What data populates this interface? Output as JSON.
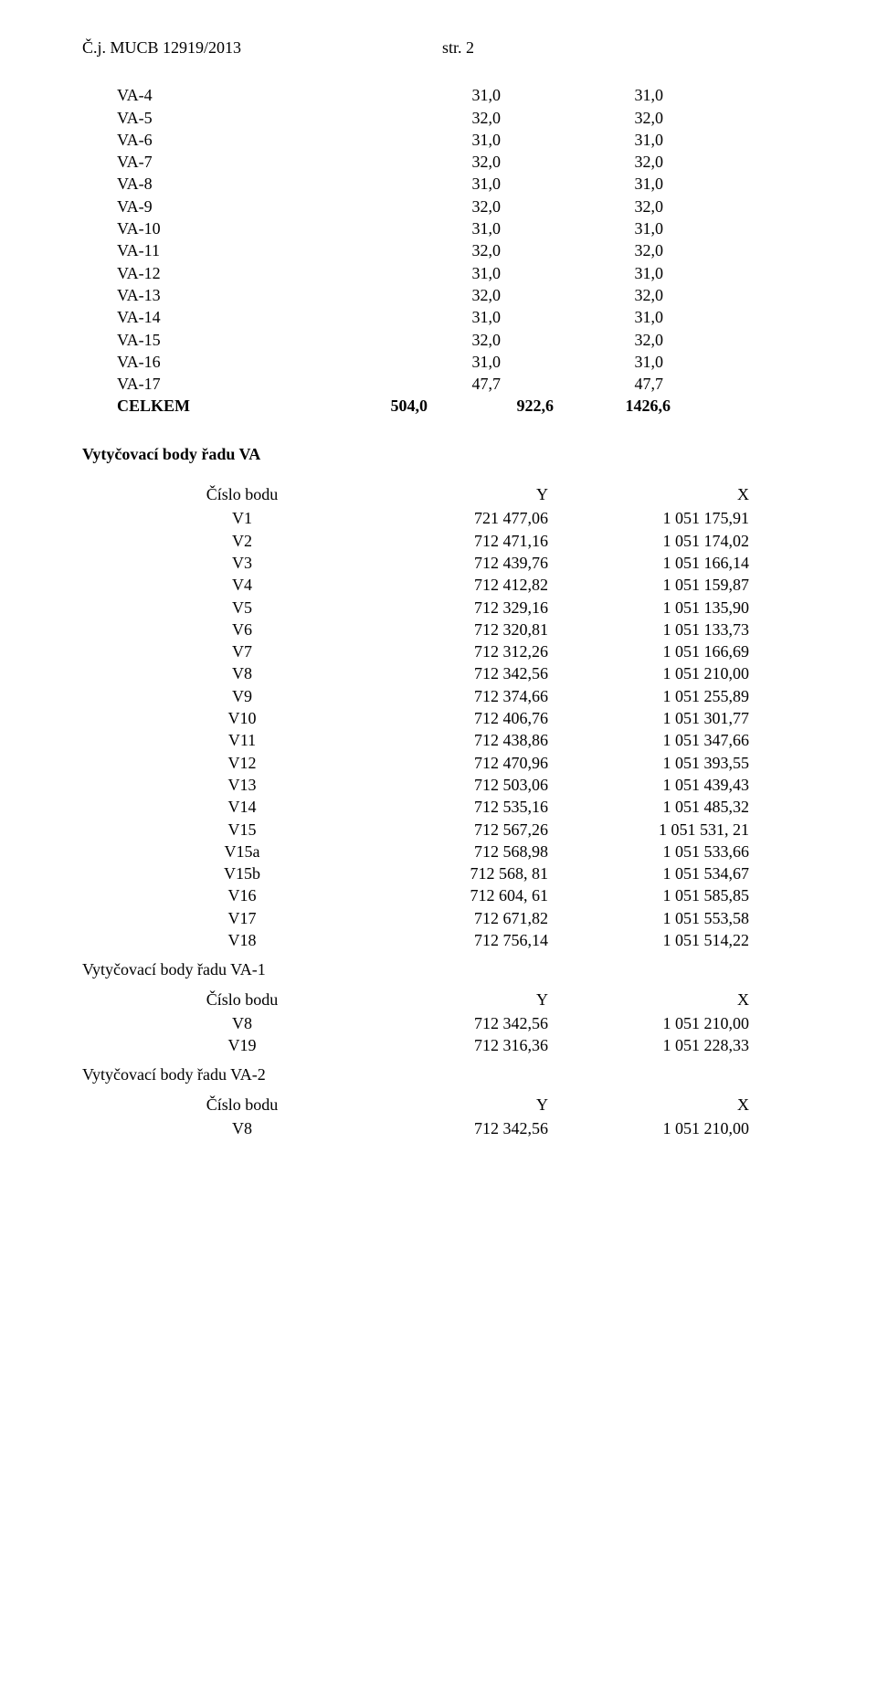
{
  "header": {
    "ref": "Č.j. MUCB 12919/2013",
    "page": "str. 2"
  },
  "segments": {
    "rows": [
      {
        "label": "VA-4",
        "a": "31,0",
        "b": "31,0"
      },
      {
        "label": "VA-5",
        "a": "32,0",
        "b": "32,0"
      },
      {
        "label": "VA-6",
        "a": "31,0",
        "b": "31,0"
      },
      {
        "label": "VA-7",
        "a": "32,0",
        "b": "32,0"
      },
      {
        "label": "VA-8",
        "a": "31,0",
        "b": "31,0"
      },
      {
        "label": "VA-9",
        "a": "32,0",
        "b": "32,0"
      },
      {
        "label": "VA-10",
        "a": "31,0",
        "b": "31,0"
      },
      {
        "label": "VA-11",
        "a": "32,0",
        "b": "32,0"
      },
      {
        "label": "VA-12",
        "a": "31,0",
        "b": "31,0"
      },
      {
        "label": "VA-13",
        "a": "32,0",
        "b": "32,0"
      },
      {
        "label": "VA-14",
        "a": "31,0",
        "b": "31,0"
      },
      {
        "label": "VA-15",
        "a": "32,0",
        "b": "32,0"
      },
      {
        "label": "VA-16",
        "a": "31,0",
        "b": "31,0"
      },
      {
        "label": "VA-17",
        "a": "47,7",
        "b": "47,7"
      }
    ],
    "total": {
      "label": "CELKEM",
      "a": "504,0",
      "b": "922,6",
      "c": "1426,6"
    }
  },
  "section_va": {
    "title": "Vytyčovací body řadu VA",
    "head": {
      "pt": "Číslo bodu",
      "y": "Y",
      "x": "X"
    },
    "rows": [
      {
        "pt": "V1",
        "y": "721 477,06",
        "x": "1 051 175,91"
      },
      {
        "pt": "V2",
        "y": "712 471,16",
        "x": "1 051 174,02"
      },
      {
        "pt": "V3",
        "y": "712 439,76",
        "x": "1 051 166,14"
      },
      {
        "pt": "V4",
        "y": "712 412,82",
        "x": "1 051 159,87"
      },
      {
        "pt": "V5",
        "y": "712 329,16",
        "x": "1 051 135,90"
      },
      {
        "pt": "V6",
        "y": "712 320,81",
        "x": "1 051 133,73"
      },
      {
        "pt": "V7",
        "y": "712 312,26",
        "x": "1 051 166,69"
      },
      {
        "pt": "V8",
        "y": "712 342,56",
        "x": "1 051 210,00"
      },
      {
        "pt": "V9",
        "y": "712 374,66",
        "x": "1 051 255,89"
      },
      {
        "pt": "V10",
        "y": "712 406,76",
        "x": "1 051 301,77"
      },
      {
        "pt": "V11",
        "y": "712 438,86",
        "x": "1 051 347,66"
      },
      {
        "pt": "V12",
        "y": "712 470,96",
        "x": "1 051 393,55"
      },
      {
        "pt": "V13",
        "y": "712 503,06",
        "x": "1 051 439,43"
      },
      {
        "pt": "V14",
        "y": "712 535,16",
        "x": "1 051 485,32"
      },
      {
        "pt": "V15",
        "y": "712 567,26",
        "x": "1 051 531, 21"
      },
      {
        "pt": "V15a",
        "y": "712 568,98",
        "x": "1 051 533,66"
      },
      {
        "pt": "V15b",
        "y": "712 568, 81",
        "x": "1 051 534,67"
      },
      {
        "pt": "V16",
        "y": "712 604, 61",
        "x": "1 051 585,85"
      },
      {
        "pt": "V17",
        "y": "712 671,82",
        "x": "1 051 553,58"
      },
      {
        "pt": "V18",
        "y": "712 756,14",
        "x": "1 051 514,22"
      }
    ]
  },
  "section_va1": {
    "title": "Vytyčovací body řadu VA-1",
    "head": {
      "pt": "Číslo bodu",
      "y": "Y",
      "x": "X"
    },
    "rows": [
      {
        "pt": "V8",
        "y": "712 342,56",
        "x": "1 051 210,00"
      },
      {
        "pt": "V19",
        "y": "712 316,36",
        "x": "1 051 228,33"
      }
    ]
  },
  "section_va2": {
    "title": "Vytyčovací body řadu VA-2",
    "head": {
      "pt": "Číslo bodu",
      "y": "Y",
      "x": "X"
    },
    "rows": [
      {
        "pt": "V8",
        "y": "712 342,56",
        "x": "1 051 210,00"
      }
    ]
  }
}
